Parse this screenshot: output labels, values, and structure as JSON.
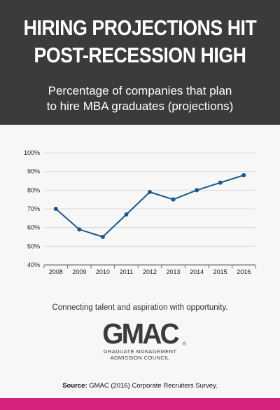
{
  "header": {
    "title_line1": "HIRING PROJECTIONS HIT",
    "title_line2": "POST-RECESSION HIGH",
    "subtitle_line1": "Percentage of companies that plan",
    "subtitle_line2": "to hire MBA graduates (projections)"
  },
  "chart_data": {
    "type": "line",
    "title": "",
    "xlabel": "",
    "ylabel": "",
    "x": [
      "2008",
      "2009",
      "2010",
      "2011",
      "2012",
      "2013",
      "2014",
      "2015",
      "2016"
    ],
    "series": [
      {
        "values": [
          70,
          59,
          55,
          67,
          79,
          75,
          80,
          84,
          88
        ]
      }
    ],
    "ylim": [
      40,
      100
    ],
    "yticks": [
      40,
      50,
      60,
      70,
      80,
      90,
      100
    ],
    "ytick_labels": [
      "40%",
      "50%",
      "60%",
      "70%",
      "80%",
      "90%",
      "100%"
    ],
    "grid": "horizontal",
    "line_color": "#1a5a8c"
  },
  "footer": {
    "tagline": "Connecting talent and aspiration with opportunity.",
    "logo_text": "GMAC",
    "logo_reg": "®",
    "logo_sub1": "GRADUATE MANAGEMENT",
    "logo_sub2": "ADMISSION COUNCIL",
    "source_label": "Source:",
    "source_text": " GMAC (2016) Corporate Recruiters Survey."
  },
  "colors": {
    "header_bg": "#3b3b3b",
    "accent_bar": "#d6237c"
  }
}
